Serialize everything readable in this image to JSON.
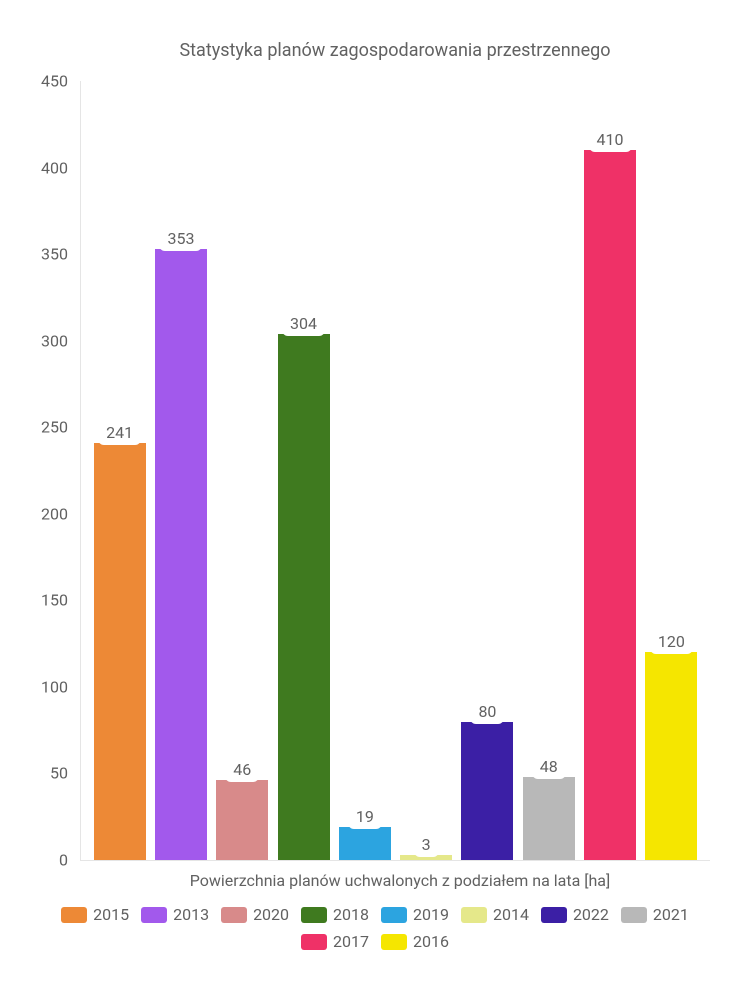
{
  "chart": {
    "type": "bar",
    "title": "Statystyka planów zagospodarowania przestrzennego",
    "x_label": "Powierzchnia planów uchwalonych z podziałem na lata [ha]",
    "title_fontsize": 18,
    "label_fontsize": 16,
    "tick_fontsize": 16,
    "text_color": "#616161",
    "background_color": "#ffffff",
    "bar_label_bg": "#ffffff",
    "bar_label_radius": 6,
    "ylim": [
      0,
      450
    ],
    "ytick_step": 50,
    "yticks": [
      0,
      50,
      100,
      150,
      200,
      250,
      300,
      350,
      400,
      450
    ],
    "bars": [
      {
        "year": "2015",
        "value": 241,
        "color": "#ed8936"
      },
      {
        "year": "2013",
        "value": 353,
        "color": "#a259ec"
      },
      {
        "year": "2020",
        "value": 46,
        "color": "#d88a8a"
      },
      {
        "year": "2018",
        "value": 304,
        "color": "#3f7a1f"
      },
      {
        "year": "2019",
        "value": 19,
        "color": "#2ca4e0"
      },
      {
        "year": "2014",
        "value": 3,
        "color": "#e5e88a"
      },
      {
        "year": "2022",
        "value": 80,
        "color": "#3b1fa5"
      },
      {
        "year": "2021",
        "value": 48,
        "color": "#b8b8b8"
      },
      {
        "year": "2017",
        "value": 410,
        "color": "#ef3167"
      },
      {
        "year": "2016",
        "value": 120,
        "color": "#f5e600"
      }
    ],
    "legend_order": [
      "2015",
      "2013",
      "2020",
      "2018",
      "2019",
      "2014",
      "2022",
      "2021",
      "2017",
      "2016"
    ]
  }
}
